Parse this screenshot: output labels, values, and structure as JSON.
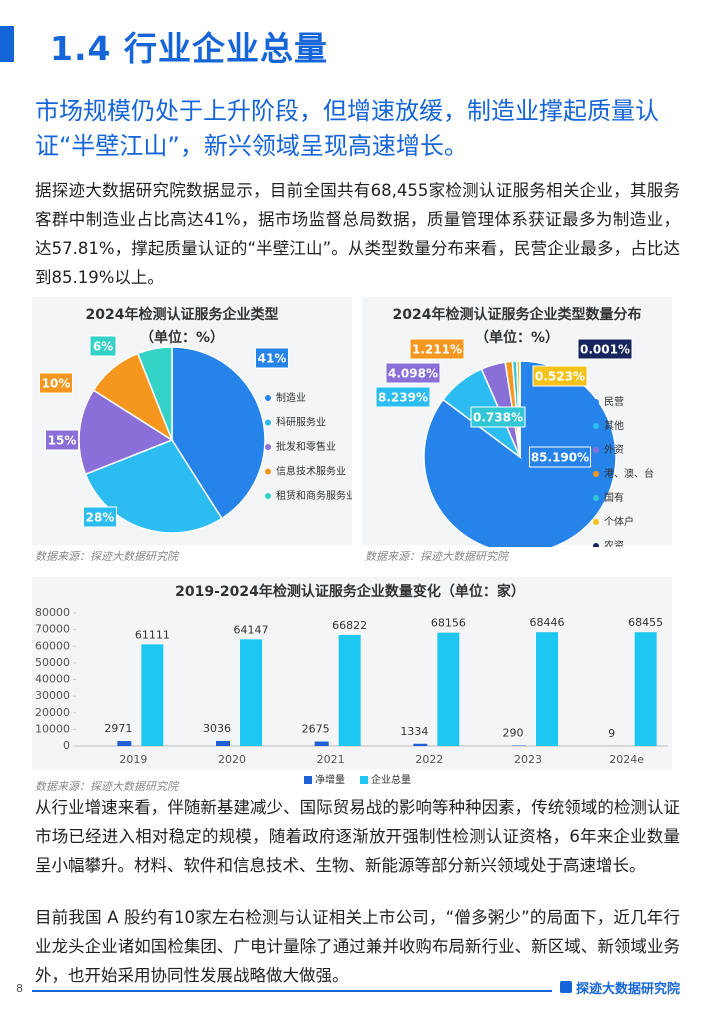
{
  "header": {
    "section": "1.4 行业企业总量"
  },
  "subtitle": "市场规模仍处于上升阶段，但增速放缓，制造业撑起质量认证“半壁江山”，新兴领域呈现高速增长。",
  "paragraphs": [
    "据探迹大数据研究院数据显示，目前全国共有68,455家检测认证服务相关企业，其服务客群中制造业占比高达41%，据市场监督总局数据，质量管理体系获证最多为制造业，达57.81%，撑起质量认证的“半壁江山”。从类型数量分布来看，民营企业最多，占比达到85.19%以上。",
    "从行业增速来看，伴随新基建减少、国际贸易战的影响等种种因素，传统领域的检测认证市场已经进入相对稳定的规模，随着政府逐渐放开强制性检测认证资格，6年来企业数量呈小幅攀升。材料、软件和信息技术、生物、新能源等部分新兴领域处于高速增长。",
    "目前我国 A 股约有10家左右检测与认证相关上市公司，“僧多粥少”的局面下，近几年行业龙头企业诸如国检集团、广电计量除了通过兼并收购布局新行业、新区域、新领域业务外，也开始采用协同性发展战略做大做强。"
  ],
  "chart_data": [
    {
      "type": "pie",
      "title": "2024年检测认证服务企业类型",
      "subtitle": "（单位：%）",
      "categories": [
        "制造业",
        "科研服务业",
        "批发和零售业",
        "信息技术服务业",
        "租赁和商务服务业"
      ],
      "values": [
        41,
        28,
        15,
        10,
        6
      ],
      "value_labels": [
        "41%",
        "28%",
        "15%",
        "10%",
        "6%"
      ],
      "colors": [
        "#2683ea",
        "#2bbcf2",
        "#8a6fd8",
        "#f5961f",
        "#33d1c6"
      ],
      "source": "数据来源：探迹大数据研究院"
    },
    {
      "type": "pie",
      "title": "2024年检测认证服务企业类型数量分布",
      "subtitle": "（单位：%）",
      "categories": [
        "民营",
        "其他",
        "外资",
        "港、澳、台",
        "国有",
        "个体户",
        "农资"
      ],
      "values": [
        85.19,
        8.239,
        4.098,
        1.211,
        0.738,
        0.523,
        0.001
      ],
      "value_labels": [
        "85.190%",
        "8.239%",
        "4.098%",
        "1.211%",
        "0.738%",
        "0.523%",
        "0.001%"
      ],
      "colors": [
        "#2683ea",
        "#2bbcf2",
        "#8a6fd8",
        "#f5961f",
        "#33c7d6",
        "#f5c21b",
        "#17255e"
      ],
      "source": "数据来源：探迹大数据研究院"
    },
    {
      "type": "bar",
      "title": "2019-2024年检测认证服务企业数量变化（单位：家）",
      "categories": [
        "2019",
        "2020",
        "2021",
        "2022",
        "2023",
        "2024e"
      ],
      "series": [
        {
          "name": "净增量",
          "color": "#1f5fd6",
          "values": [
            2971,
            3036,
            2675,
            1334,
            290,
            9
          ]
        },
        {
          "name": "企业总量",
          "color": "#1ec6f2",
          "values": [
            61111,
            64147,
            66822,
            68156,
            68446,
            68455
          ]
        }
      ],
      "ylim": [
        0,
        80000
      ],
      "yticks": [
        0,
        10000,
        20000,
        30000,
        40000,
        50000,
        60000,
        70000,
        80000
      ],
      "grid": false,
      "legend": "bottom",
      "source": "数据来源：探迹大数据研究院"
    }
  ],
  "footer": {
    "page": "8",
    "brand": "探迹大数据研究院"
  }
}
